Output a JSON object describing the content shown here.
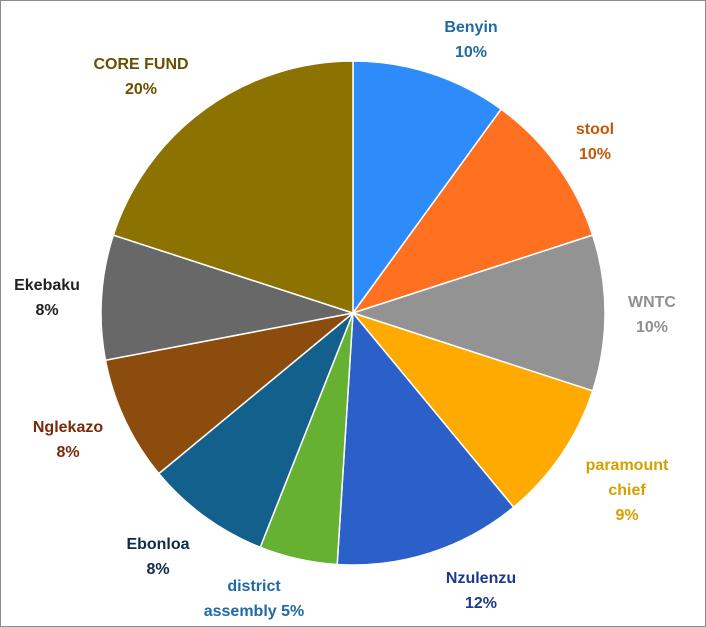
{
  "chart_data": {
    "type": "pie",
    "title": "",
    "slices": [
      {
        "label": "Benyin",
        "percent_label": "10%",
        "value": 10,
        "color": "#2e8bfa",
        "label_color": "#1f6aa5"
      },
      {
        "label": "stool",
        "percent_label": "10%",
        "value": 10,
        "color": "#ff7020",
        "label_color": "#c05a0a"
      },
      {
        "label": "WNTC",
        "percent_label": "10%",
        "value": 10,
        "color": "#939393",
        "label_color": "#909090"
      },
      {
        "label": "paramount chief",
        "percent_label": "9%",
        "value": 9,
        "color": "#ffaa00",
        "label_color": "#d4a000"
      },
      {
        "label": "Nzulenzu",
        "percent_label": "12%",
        "value": 12,
        "color": "#2a60c8",
        "label_color": "#1f3a8a"
      },
      {
        "label": "district assembly 5%",
        "percent_label": "",
        "value": 5,
        "color": "#66b032",
        "label_color": "#1f6aa5"
      },
      {
        "label": "Ebonloa",
        "percent_label": "8%",
        "value": 8,
        "color": "#14608c",
        "label_color": "#0e2b4a"
      },
      {
        "label": "Nglekazo",
        "percent_label": "8%",
        "value": 8,
        "color": "#8c4c0e",
        "label_color": "#7a2a0a"
      },
      {
        "label": "Ekebaku",
        "percent_label": "8%",
        "value": 8,
        "color": "#686868",
        "label_color": "#222222"
      },
      {
        "label": "CORE FUND",
        "percent_label": "20%",
        "value": 20,
        "color": "#8c7200",
        "label_color": "#6b4e00"
      }
    ]
  }
}
